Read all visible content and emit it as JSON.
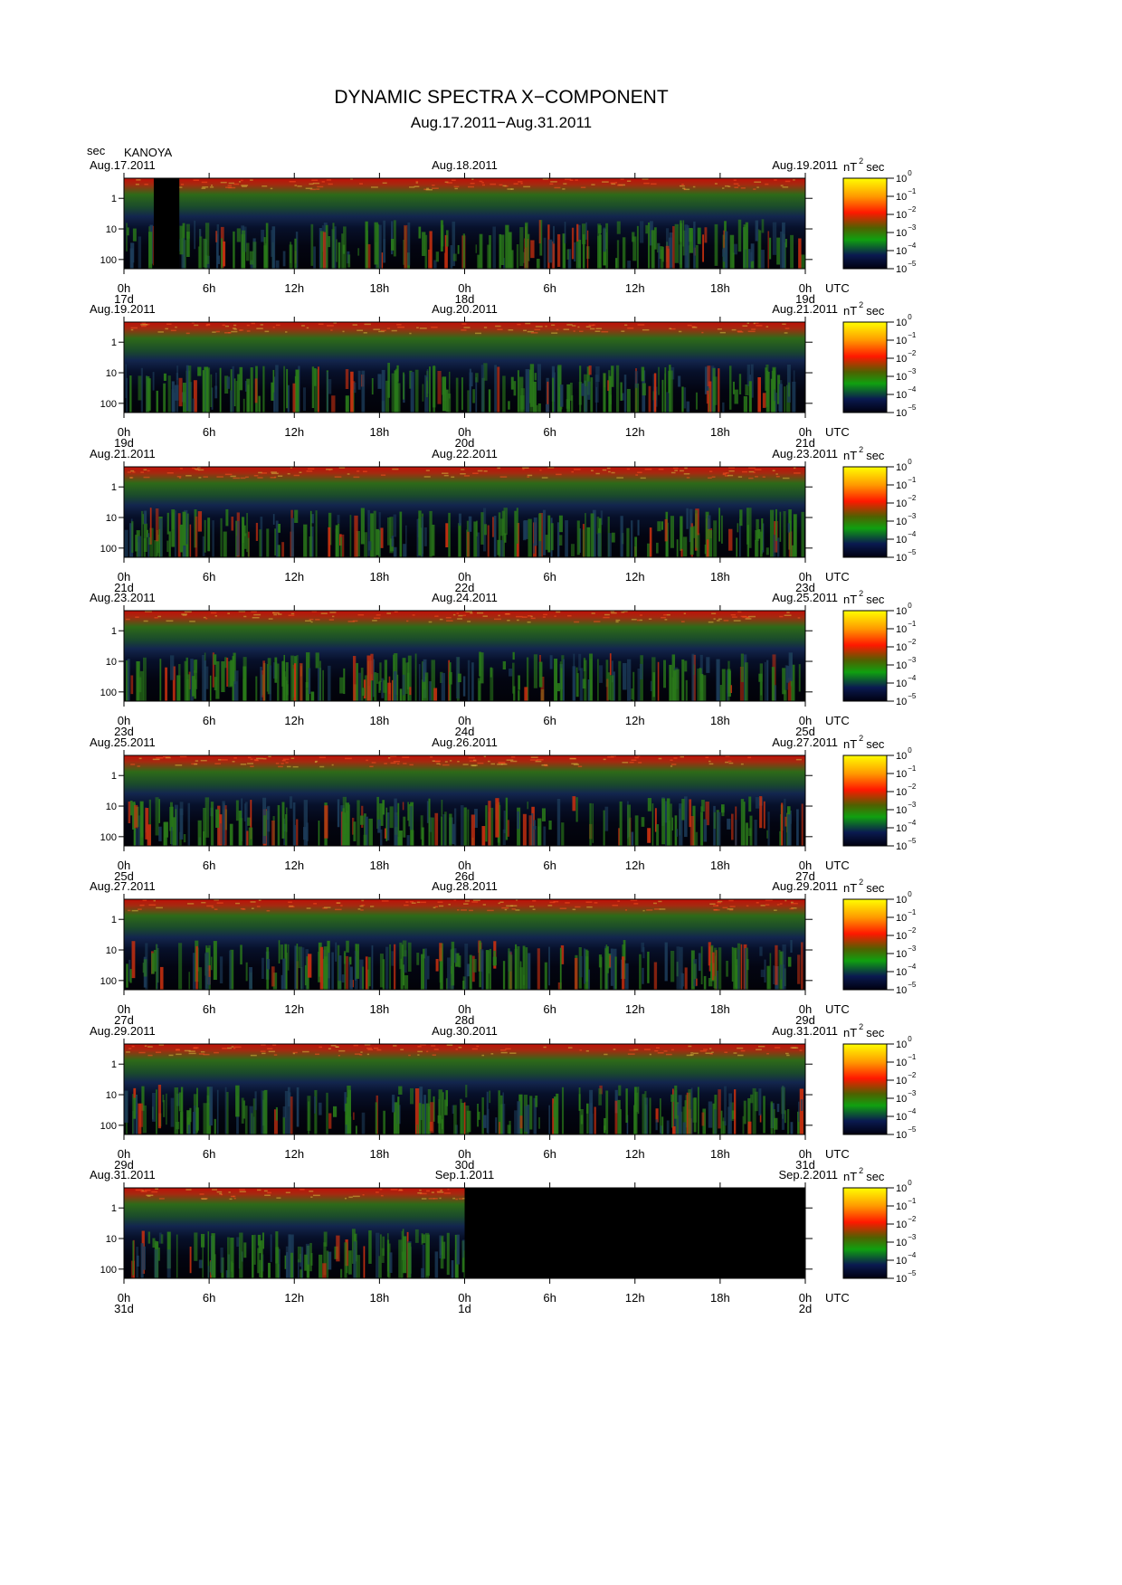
{
  "title": "DYNAMIC SPECTRA X−COMPONENT",
  "subtitle": "Aug.17.2011−Aug.31.2011",
  "y_label": "sec",
  "station": "KANOYA",
  "time_zone": "UTC",
  "ylim": [
    0.22,
    200
  ],
  "yscale": "log",
  "yticks": [
    1,
    10,
    100
  ],
  "xlim": [
    0,
    48
  ],
  "xticks": [
    {
      "value": 0,
      "label": "0h"
    },
    {
      "value": 6,
      "label": "6h"
    },
    {
      "value": 12,
      "label": "12h"
    },
    {
      "value": 18,
      "label": "18h"
    },
    {
      "value": 24,
      "label": "0h"
    },
    {
      "value": 30,
      "label": "6h"
    },
    {
      "value": 36,
      "label": "12h"
    },
    {
      "value": 42,
      "label": "18h"
    },
    {
      "value": 48,
      "label": "0h"
    }
  ],
  "colorbar": {
    "unit": "nT",
    "unit_exp": "2",
    "unit_tail": "sec",
    "range": [
      1e-05,
      1
    ],
    "ticks": [
      {
        "value": 1,
        "base": "10",
        "exp": "0"
      },
      {
        "value": 0.1,
        "base": "10",
        "exp": "−1"
      },
      {
        "value": 0.01,
        "base": "10",
        "exp": "−2"
      },
      {
        "value": 0.001,
        "base": "10",
        "exp": "−3"
      },
      {
        "value": 0.0001,
        "base": "10",
        "exp": "−4"
      },
      {
        "value": 1e-05,
        "base": "10",
        "exp": "−5"
      }
    ]
  },
  "panels": [
    {
      "dates": [
        "Aug.17.2011",
        "Aug.18.2011",
        "Aug.19.2011"
      ],
      "days": [
        "17d",
        "18d",
        "19d"
      ],
      "missing": [
        [
          2.1,
          3.9
        ]
      ]
    },
    {
      "dates": [
        "Aug.19.2011",
        "Aug.20.2011",
        "Aug.21.2011"
      ],
      "days": [
        "19d",
        "20d",
        "21d"
      ],
      "missing": []
    },
    {
      "dates": [
        "Aug.21.2011",
        "Aug.22.2011",
        "Aug.23.2011"
      ],
      "days": [
        "21d",
        "22d",
        "23d"
      ],
      "missing": []
    },
    {
      "dates": [
        "Aug.23.2011",
        "Aug.24.2011",
        "Aug.25.2011"
      ],
      "days": [
        "23d",
        "24d",
        "25d"
      ],
      "missing": []
    },
    {
      "dates": [
        "Aug.25.2011",
        "Aug.26.2011",
        "Aug.27.2011"
      ],
      "days": [
        "25d",
        "26d",
        "27d"
      ],
      "missing": []
    },
    {
      "dates": [
        "Aug.27.2011",
        "Aug.28.2011",
        "Aug.29.2011"
      ],
      "days": [
        "27d",
        "28d",
        "29d"
      ],
      "missing": []
    },
    {
      "dates": [
        "Aug.29.2011",
        "Aug.30.2011",
        "Aug.31.2011"
      ],
      "days": [
        "29d",
        "30d",
        "31d"
      ],
      "missing": []
    },
    {
      "dates": [
        "Aug.31.2011",
        "Sep.1.2011",
        "Sep.2.2011"
      ],
      "days": [
        "31d",
        "1d",
        "2d"
      ],
      "missing": [
        [
          24,
          48
        ]
      ]
    }
  ]
}
